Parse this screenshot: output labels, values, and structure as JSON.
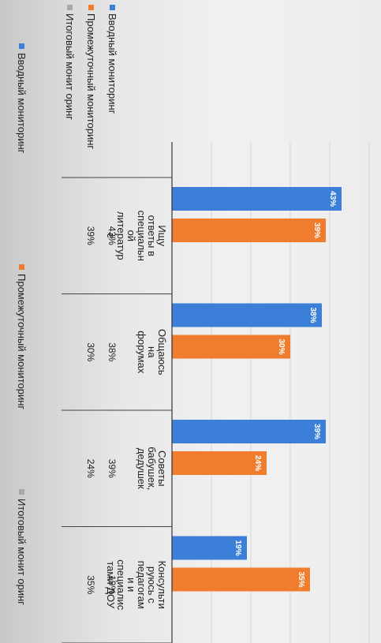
{
  "chart_data": {
    "type": "bar",
    "title": "",
    "categories": [
      [
        "Ищу",
        "ответы в",
        "специальн",
        "ой",
        "литератур",
        "е"
      ],
      [
        "Общаюсь",
        "на",
        "форумах"
      ],
      [
        "Советы",
        "бабушек,",
        "дедушек"
      ],
      [
        "Консульти",
        "руюсь с",
        "педагогам",
        "и и",
        "специалис",
        "тами ДОУ"
      ]
    ],
    "series": [
      {
        "name": "Вводный мониторинг",
        "values": [
          43,
          38,
          39,
          19
        ],
        "labels": [
          "43%",
          "38%",
          "39%",
          "19%"
        ],
        "color": "#3b7fd9"
      },
      {
        "name": "Промежуточный мониторинг",
        "values": [
          39,
          30,
          24,
          35
        ],
        "labels": [
          "39%",
          "30%",
          "24%",
          "35%"
        ],
        "color": "#f07d2e"
      },
      {
        "name": "Итоговый монит оринг",
        "values": [
          0,
          0,
          0,
          0
        ],
        "labels": [
          "",
          "",
          "",
          ""
        ],
        "color": "#a8a8a8"
      }
    ],
    "ylim": [
      0,
      50
    ],
    "grid": true,
    "data_table": true,
    "legend_table_names": [
      "Вводный мониторинг",
      "Промежуточный мониторинг",
      "Итоговый монит оринг"
    ],
    "legend_bottom_names": [
      "Вводный мониторинг",
      "Промежуточный мониторинг",
      "Итоговый монит оринг"
    ],
    "legend_placement": "bottom"
  }
}
